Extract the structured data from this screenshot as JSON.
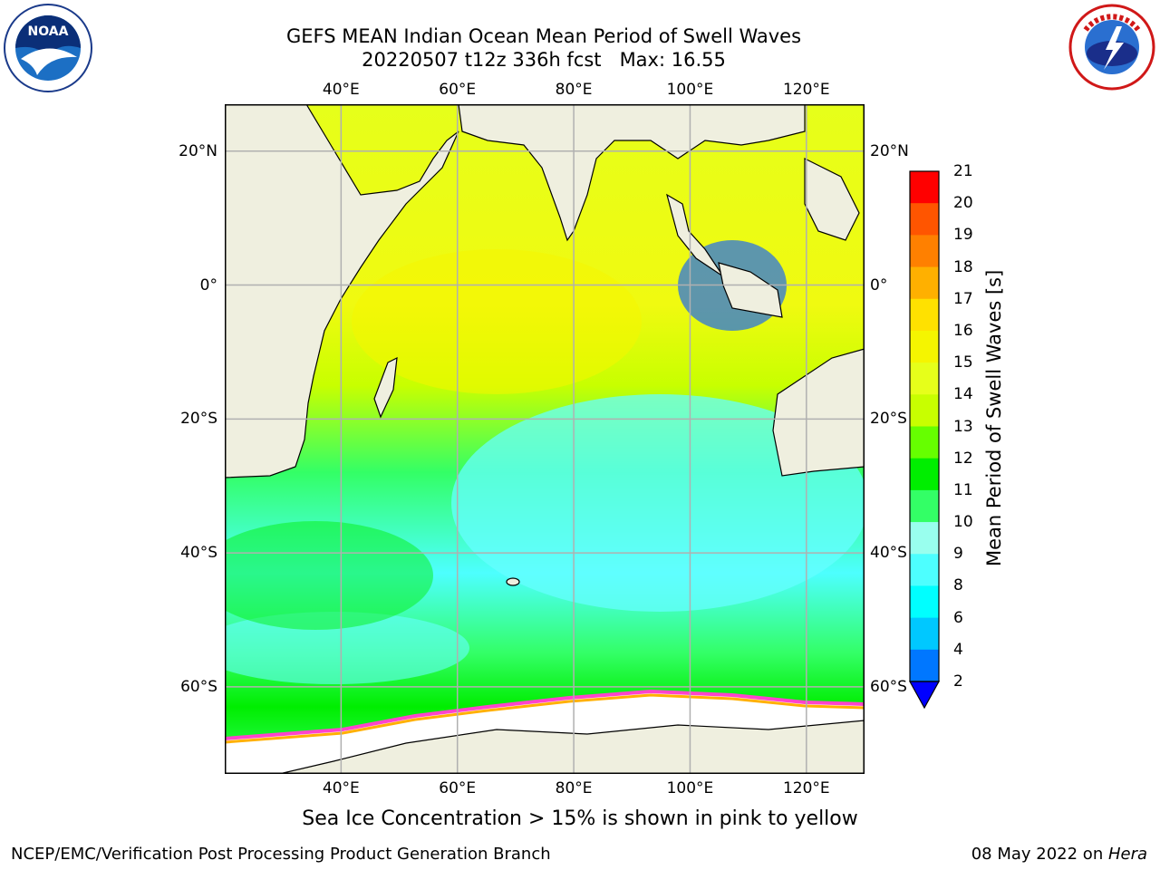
{
  "header": {
    "title_line1": "GEFS MEAN Indian Ocean Mean Period of Swell Waves",
    "title_line2": "20220507 t12z 336h fcst   Max: 16.55"
  },
  "logos": {
    "left": {
      "name": "noaa-logo",
      "text": "NOAA"
    },
    "right": {
      "name": "nws-logo",
      "text": "NATIONAL WEATHER SERVICE"
    }
  },
  "map": {
    "lon_ticks": [
      "40°E",
      "60°E",
      "80°E",
      "100°E",
      "120°E"
    ],
    "lat_ticks": [
      "20°N",
      "0°",
      "20°S",
      "40°S",
      "60°S"
    ],
    "lon_values": [
      40,
      60,
      80,
      100,
      120
    ],
    "lat_values": [
      20,
      0,
      -20,
      -40,
      -60
    ],
    "extent": {
      "lon_min": 20,
      "lon_max": 130,
      "lat_min": -73,
      "lat_max": 27
    },
    "colors": {
      "land": "#efefdf",
      "ice": "#ffffff",
      "grid": "#b0b0b0"
    }
  },
  "colorbar": {
    "title": "Mean Period of Swell Waves [s]",
    "labels": [
      "21",
      "20",
      "19",
      "18",
      "17",
      "16",
      "15",
      "14",
      "13",
      "12",
      "11",
      "10",
      "9",
      "8",
      "6",
      "4",
      "2"
    ],
    "colors": [
      "#ff0000",
      "#ff2a00",
      "#ff5500",
      "#ff8000",
      "#ffb000",
      "#ffe100",
      "#f5f500",
      "#e6ff1a",
      "#c8ff00",
      "#66ff00",
      "#00ee00",
      "#33ff66",
      "#99ffee",
      "#4dffff",
      "#00ffff",
      "#00c8ff",
      "#0077ff"
    ],
    "under_color": "#0000ff"
  },
  "caption": "Sea Ice Concentration > 15% is shown in pink to yellow",
  "footer": {
    "left": "NCEP/EMC/Verification Post Processing Product Generation Branch",
    "right_prefix": "08 May 2022 on ",
    "right_host": "Hera"
  }
}
